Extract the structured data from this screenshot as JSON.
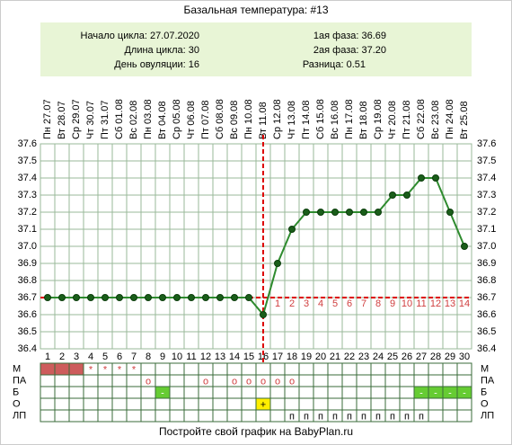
{
  "chart_data": {
    "type": "line",
    "title": "Базальная температура: #13",
    "info_left": [
      "Начало цикла: 27.07.2020",
      "Длина цикла: 30",
      "День овуляции: 16"
    ],
    "info_right": [
      "1ая фаза: 36.69",
      "2ая фаза: 37.20",
      "Разница: 0.51"
    ],
    "categories": [
      "Пн 27.07",
      "Вт 28.07",
      "Ср 29.07",
      "Чт 30.07",
      "Пт 31.07",
      "Сб 01.08",
      "Вс 02.08",
      "Пн 03.08",
      "Вт 04.08",
      "Ср 05.08",
      "Чт 06.08",
      "Пт 07.08",
      "Сб 08.08",
      "Вс 09.08",
      "Пн 10.08",
      "Вт 11.08",
      "Ср 12.08",
      "Чт 13.08",
      "Пт 14.08",
      "Сб 15.08",
      "Вс 16.08",
      "Пн 17.08",
      "Вт 18.08",
      "Ср 19.08",
      "Чт 20.08",
      "Пт 21.08",
      "Сб 22.08",
      "Вс 23.08",
      "Пн 24.08",
      "Вт 25.08"
    ],
    "x": [
      1,
      2,
      3,
      4,
      5,
      6,
      7,
      8,
      9,
      10,
      11,
      12,
      13,
      14,
      15,
      16,
      17,
      18,
      19,
      20,
      21,
      22,
      23,
      24,
      25,
      26,
      27,
      28,
      29,
      30
    ],
    "values": [
      36.7,
      36.7,
      36.7,
      36.7,
      36.7,
      36.7,
      36.7,
      36.7,
      36.7,
      36.7,
      36.7,
      36.7,
      36.7,
      36.7,
      36.7,
      36.6,
      36.9,
      37.1,
      37.2,
      37.2,
      37.2,
      37.2,
      37.2,
      37.2,
      37.3,
      37.3,
      37.4,
      37.4,
      37.2,
      37.0
    ],
    "color": "#2e8b2e",
    "ylim": [
      36.4,
      37.6
    ],
    "yticks": [
      36.4,
      36.5,
      36.6,
      36.7,
      36.8,
      36.9,
      {
        "value": 37,
        "label": "37.0"
      },
      37.1,
      37.2,
      37.3,
      37.4,
      37.5,
      37.6
    ],
    "coverline": 36.7,
    "ovulation_day": 16,
    "phase_days": [
      1,
      2,
      3,
      4,
      5,
      6,
      7,
      8,
      9,
      10,
      11,
      12,
      13,
      14
    ],
    "footer": "Постройте свой график на BabyPlan.ru",
    "rows": [
      {
        "label": "М",
        "cells": [
          null,
          null,
          null,
          "*",
          "*",
          "*",
          "*",
          null,
          null,
          null,
          null,
          null,
          null,
          null,
          null,
          null,
          null,
          null,
          null,
          null,
          null,
          null,
          null,
          null,
          null,
          null,
          null,
          null,
          null,
          null
        ],
        "fills": [
          "#cd5c5c",
          "#cd5c5c",
          "#cd5c5c",
          null,
          null,
          null,
          null,
          null,
          null,
          null,
          null,
          null,
          null,
          null,
          null,
          null,
          null,
          null,
          null,
          null,
          null,
          null,
          null,
          null,
          null,
          null,
          null,
          null,
          null,
          null
        ]
      },
      {
        "label": "ПА",
        "cells": [
          null,
          null,
          null,
          null,
          null,
          null,
          null,
          "o",
          null,
          null,
          null,
          "o",
          null,
          "o",
          "o",
          "o",
          "o",
          "o",
          null,
          null,
          null,
          null,
          null,
          null,
          null,
          null,
          null,
          null,
          null,
          null
        ],
        "fills": [
          null,
          null,
          null,
          null,
          null,
          null,
          null,
          null,
          null,
          null,
          null,
          null,
          null,
          null,
          null,
          null,
          null,
          null,
          null,
          null,
          null,
          null,
          null,
          null,
          null,
          null,
          null,
          null,
          null,
          null
        ]
      },
      {
        "label": "Б",
        "cells": [
          null,
          null,
          null,
          null,
          null,
          null,
          null,
          null,
          "-",
          null,
          null,
          null,
          null,
          null,
          null,
          null,
          null,
          null,
          null,
          null,
          null,
          null,
          null,
          null,
          null,
          null,
          "-",
          "-",
          "-",
          "-"
        ],
        "fills": [
          null,
          null,
          null,
          null,
          null,
          null,
          null,
          null,
          "#66cc33",
          null,
          null,
          null,
          null,
          null,
          null,
          null,
          null,
          null,
          null,
          null,
          null,
          null,
          null,
          null,
          null,
          null,
          "#66cc33",
          "#66cc33",
          "#66cc33",
          "#66cc33"
        ]
      },
      {
        "label": "О",
        "cells": [
          null,
          null,
          null,
          null,
          null,
          null,
          null,
          null,
          null,
          null,
          null,
          null,
          null,
          null,
          null,
          "+",
          null,
          null,
          null,
          null,
          null,
          null,
          null,
          null,
          null,
          null,
          null,
          null,
          null,
          null
        ],
        "fills": [
          null,
          null,
          null,
          null,
          null,
          null,
          null,
          null,
          null,
          null,
          null,
          null,
          null,
          null,
          null,
          "#ffee00",
          null,
          null,
          null,
          null,
          null,
          null,
          null,
          null,
          null,
          null,
          null,
          null,
          null,
          null
        ]
      },
      {
        "label": "ЛП",
        "cells": [
          null,
          null,
          null,
          null,
          null,
          null,
          null,
          null,
          null,
          null,
          null,
          null,
          null,
          null,
          null,
          null,
          null,
          "п",
          "п",
          "п",
          "п",
          "п",
          "п",
          "п",
          "п",
          "п",
          "п",
          null,
          null,
          null
        ],
        "fills": [
          null,
          null,
          null,
          null,
          null,
          null,
          null,
          null,
          null,
          null,
          null,
          null,
          null,
          null,
          null,
          null,
          null,
          null,
          null,
          null,
          null,
          null,
          null,
          null,
          null,
          null,
          null,
          null,
          null,
          null
        ]
      }
    ]
  }
}
